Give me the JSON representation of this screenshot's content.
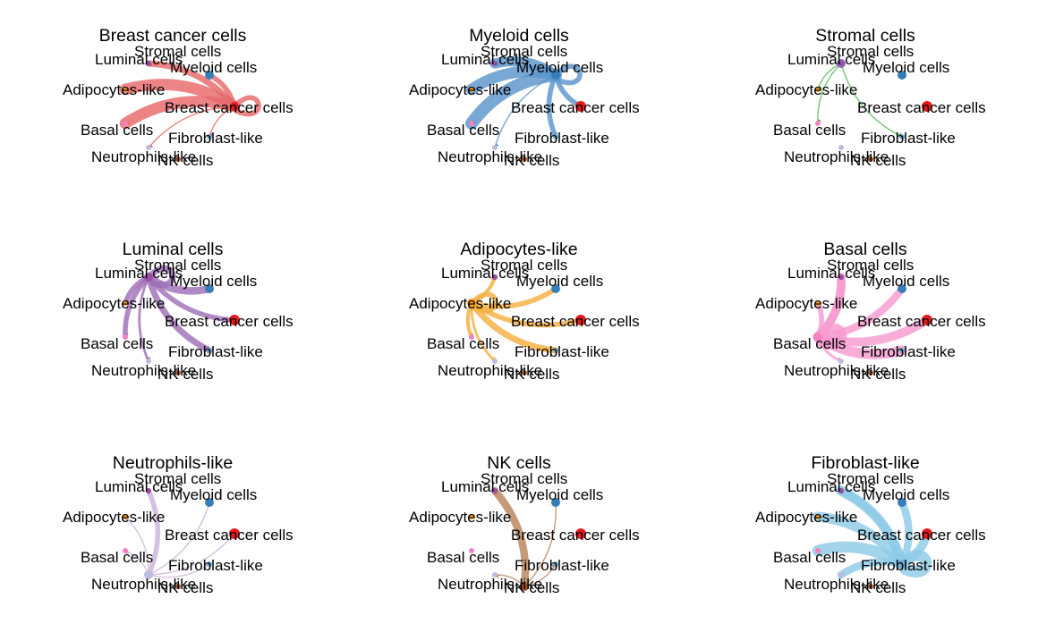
{
  "figure": {
    "description_type": "circle-plot",
    "nodes": [
      {
        "id": "stromal",
        "label": "Stromal cells",
        "color": "#9467bd"
      },
      {
        "id": "myeloid",
        "label": "Myeloid cells",
        "color": "#377eb8"
      },
      {
        "id": "breast",
        "label": "Breast cancer cells",
        "color": "#e41a1c"
      },
      {
        "id": "fibro",
        "label": "Fibroblast-like",
        "color": "#6baed6"
      },
      {
        "id": "nk",
        "label": "NK cells",
        "color": "#a65628"
      },
      {
        "id": "neutro",
        "label": "Neutrophils-like",
        "color": "#bcbddc"
      },
      {
        "id": "basal",
        "label": "Basal cells",
        "color": "#f781bf"
      },
      {
        "id": "adipo",
        "label": "Adipocytes-like",
        "color": "#ff9f1c"
      },
      {
        "id": "luminal",
        "label": "Luminal cells",
        "color": "#984ea3"
      }
    ],
    "panels": [
      {
        "title": "Breast cancer cells",
        "source": "breast",
        "edge_color": "#e8696b",
        "edges": [
          {
            "target": "luminal",
            "weight": 5
          },
          {
            "target": "myeloid",
            "weight": 4
          },
          {
            "target": "adipo",
            "weight": 9
          },
          {
            "target": "basal",
            "weight": 9
          },
          {
            "target": "breast",
            "weight": 4
          },
          {
            "target": "neutro",
            "weight": 1
          },
          {
            "target": "fibro",
            "weight": 1
          }
        ]
      },
      {
        "title": "Myeloid cells",
        "source": "myeloid",
        "edge_color": "#5b95cc",
        "edges": [
          {
            "target": "luminal",
            "weight": 8
          },
          {
            "target": "adipo",
            "weight": 9
          },
          {
            "target": "basal",
            "weight": 10
          },
          {
            "target": "breast",
            "weight": 4
          },
          {
            "target": "fibro",
            "weight": 4
          },
          {
            "target": "neutro",
            "weight": 1
          },
          {
            "target": "myeloid",
            "weight": 4
          }
        ]
      },
      {
        "title": "Stromal cells",
        "source": "stromal",
        "edge_color": "#5cb85c",
        "edges": [
          {
            "target": "luminal",
            "weight": 1
          },
          {
            "target": "adipo",
            "weight": 1
          },
          {
            "target": "basal",
            "weight": 1
          },
          {
            "target": "fibro",
            "weight": 1
          }
        ]
      },
      {
        "title": "Luminal cells",
        "source": "luminal",
        "edge_color": "#a070b8",
        "edges": [
          {
            "target": "stromal",
            "weight": 5
          },
          {
            "target": "myeloid",
            "weight": 6
          },
          {
            "target": "adipo",
            "weight": 4
          },
          {
            "target": "basal",
            "weight": 4
          },
          {
            "target": "breast",
            "weight": 4
          },
          {
            "target": "fibro",
            "weight": 5
          },
          {
            "target": "neutro",
            "weight": 2
          },
          {
            "target": "luminal",
            "weight": 5
          }
        ]
      },
      {
        "title": "Adipocytes-like",
        "source": "adipo",
        "edge_color": "#f5b041",
        "edges": [
          {
            "target": "luminal",
            "weight": 3
          },
          {
            "target": "myeloid",
            "weight": 4
          },
          {
            "target": "breast",
            "weight": 4
          },
          {
            "target": "fibro",
            "weight": 5
          },
          {
            "target": "basal",
            "weight": 3
          },
          {
            "target": "neutro",
            "weight": 2
          },
          {
            "target": "adipo",
            "weight": 4
          }
        ]
      },
      {
        "title": "Basal cells",
        "source": "basal",
        "edge_color": "#f79bd0",
        "edges": [
          {
            "target": "luminal",
            "weight": 7
          },
          {
            "target": "stromal",
            "weight": 6
          },
          {
            "target": "myeloid",
            "weight": 6
          },
          {
            "target": "adipo",
            "weight": 4
          },
          {
            "target": "breast",
            "weight": 7
          },
          {
            "target": "fibro",
            "weight": 8
          },
          {
            "target": "neutro",
            "weight": 2
          },
          {
            "target": "basal",
            "weight": 8
          }
        ]
      },
      {
        "title": "Neutrophils-like",
        "source": "neutro",
        "edge_color": "#c9b4da",
        "edges": [
          {
            "target": "luminal",
            "weight": 4
          },
          {
            "target": "myeloid",
            "weight": 1
          },
          {
            "target": "breast",
            "weight": 1
          },
          {
            "target": "fibro",
            "weight": 1
          },
          {
            "target": "basal",
            "weight": 1
          },
          {
            "target": "adipo",
            "weight": 1
          }
        ]
      },
      {
        "title": "NK cells",
        "source": "nk",
        "edge_color": "#b8845c",
        "edges": [
          {
            "target": "luminal",
            "weight": 6
          },
          {
            "target": "myeloid",
            "weight": 1
          },
          {
            "target": "fibro",
            "weight": 1
          },
          {
            "target": "neutro",
            "weight": 1
          }
        ]
      },
      {
        "title": "Fibroblast-like",
        "source": "fibro",
        "edge_color": "#8ecae6",
        "edges": [
          {
            "target": "luminal",
            "weight": 8
          },
          {
            "target": "stromal",
            "weight": 6
          },
          {
            "target": "myeloid",
            "weight": 6
          },
          {
            "target": "adipo",
            "weight": 8
          },
          {
            "target": "basal",
            "weight": 9
          },
          {
            "target": "breast",
            "weight": 7
          },
          {
            "target": "neutro",
            "weight": 6
          },
          {
            "target": "fibro",
            "weight": 9
          }
        ]
      }
    ]
  }
}
